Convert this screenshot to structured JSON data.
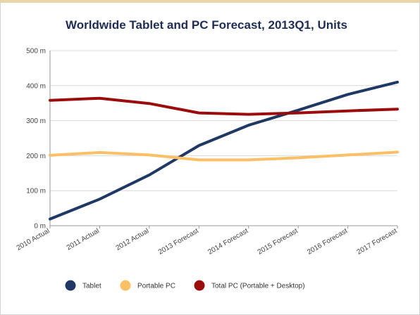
{
  "chart_data": {
    "type": "line",
    "title": "Worldwide Tablet and PC Forecast, 2013Q1, Units",
    "xlabel": "",
    "ylabel": "",
    "categories": [
      "2010 Actual",
      "2011 Actual",
      "2012 Actual",
      "2013 Forecast",
      "2014 Forecast",
      "2015 Forecast",
      "2016 Forecast",
      "2017 Forecast"
    ],
    "ylim": [
      0,
      500
    ],
    "yticks": [
      0,
      100,
      200,
      300,
      400,
      500
    ],
    "ytick_labels": [
      "0 m",
      "100 m",
      "200 m",
      "300 m",
      "400 m",
      "500 m"
    ],
    "grid": true,
    "legend_position": "bottom",
    "series": [
      {
        "name": "Tablet",
        "color": "#1f3864",
        "values": [
          19,
          76,
          145,
          229,
          287,
          330,
          375,
          410
        ]
      },
      {
        "name": "Portable PC",
        "color": "#fbbf66",
        "values": [
          201,
          209,
          202,
          188,
          188,
          194,
          202,
          210
        ]
      },
      {
        "name": "Total PC (Portable + Desktop)",
        "color": "#9b0d0d",
        "values": [
          358,
          364,
          349,
          322,
          318,
          322,
          328,
          333
        ]
      }
    ]
  }
}
